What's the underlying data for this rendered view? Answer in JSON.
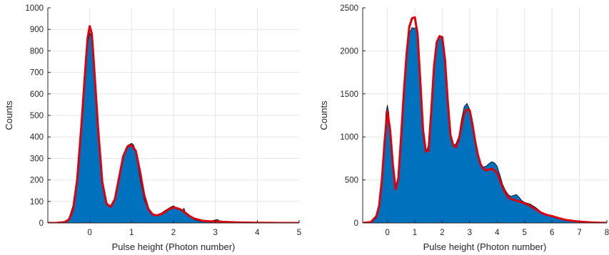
{
  "chart_data": [
    {
      "type": "area",
      "xlabel": "Pulse height (Photon number)",
      "ylabel": "Counts",
      "xlim": [
        -1,
        5
      ],
      "ylim": [
        0,
        1000
      ],
      "xticks": [
        0,
        1,
        2,
        3,
        4,
        5
      ],
      "yticks": [
        0,
        100,
        200,
        300,
        400,
        500,
        600,
        700,
        800,
        900,
        1000
      ],
      "grid": true,
      "histogram": {
        "fill_color": "#0072BD",
        "edge_color": "#000000",
        "x": [
          -1.0,
          -0.8,
          -0.6,
          -0.5,
          -0.4,
          -0.3,
          -0.2,
          -0.1,
          -0.05,
          0.0,
          0.05,
          0.1,
          0.2,
          0.3,
          0.4,
          0.5,
          0.6,
          0.7,
          0.8,
          0.9,
          1.0,
          1.05,
          1.1,
          1.2,
          1.3,
          1.4,
          1.5,
          1.6,
          1.7,
          1.8,
          1.9,
          2.0,
          2.05,
          2.1,
          2.2,
          2.25,
          2.3,
          2.4,
          2.5,
          2.6,
          2.7,
          2.8,
          2.9,
          3.0,
          3.05,
          3.1,
          3.2,
          3.4,
          3.6,
          4.0,
          4.5,
          5.0
        ],
        "y": [
          0,
          0,
          5,
          20,
          80,
          210,
          440,
          700,
          830,
          885,
          860,
          720,
          430,
          190,
          90,
          70,
          110,
          210,
          310,
          360,
          370,
          362,
          330,
          210,
          110,
          60,
          40,
          38,
          45,
          58,
          70,
          80,
          72,
          65,
          55,
          68,
          40,
          30,
          15,
          10,
          6,
          8,
          10,
          14,
          16,
          10,
          8,
          4,
          2,
          1,
          0,
          0
        ]
      },
      "series": [
        {
          "color": "#E0000B",
          "x": [
            -1.0,
            -0.8,
            -0.6,
            -0.5,
            -0.4,
            -0.3,
            -0.2,
            -0.1,
            -0.05,
            0.0,
            0.05,
            0.1,
            0.2,
            0.3,
            0.4,
            0.5,
            0.6,
            0.7,
            0.8,
            0.9,
            1.0,
            1.1,
            1.2,
            1.3,
            1.4,
            1.5,
            1.6,
            1.7,
            1.8,
            1.9,
            2.0,
            2.1,
            2.2,
            2.3,
            2.4,
            2.5,
            2.7,
            2.9,
            3.0,
            3.1,
            3.3,
            3.6,
            4.0,
            4.5,
            5.0
          ],
          "y": [
            0,
            0,
            4,
            15,
            60,
            200,
            450,
            730,
            860,
            915,
            880,
            740,
            440,
            190,
            90,
            75,
            110,
            210,
            310,
            355,
            362,
            335,
            240,
            130,
            65,
            40,
            35,
            40,
            52,
            65,
            72,
            68,
            60,
            45,
            30,
            20,
            10,
            7,
            8,
            6,
            4,
            2,
            1,
            0,
            0
          ]
        }
      ]
    },
    {
      "type": "area",
      "xlabel": "Pulse height (Photon number)",
      "ylabel": "Counts",
      "xlim": [
        -0.9,
        8
      ],
      "ylim": [
        0,
        2500
      ],
      "xticks": [
        0,
        1,
        2,
        3,
        4,
        5,
        6,
        7,
        8
      ],
      "yticks": [
        0,
        500,
        1000,
        1500,
        2000,
        2500
      ],
      "grid": true,
      "histogram": {
        "fill_color": "#0072BD",
        "edge_color": "#000000",
        "x": [
          -0.9,
          -0.6,
          -0.4,
          -0.3,
          -0.2,
          -0.1,
          -0.05,
          0.0,
          0.05,
          0.1,
          0.2,
          0.3,
          0.4,
          0.5,
          0.6,
          0.7,
          0.8,
          0.9,
          1.0,
          1.05,
          1.1,
          1.2,
          1.3,
          1.4,
          1.5,
          1.6,
          1.7,
          1.8,
          1.9,
          2.0,
          2.1,
          2.2,
          2.3,
          2.4,
          2.5,
          2.6,
          2.7,
          2.8,
          2.9,
          3.0,
          3.1,
          3.2,
          3.3,
          3.4,
          3.5,
          3.6,
          3.7,
          3.8,
          3.9,
          4.0,
          4.1,
          4.2,
          4.3,
          4.4,
          4.5,
          4.6,
          4.7,
          4.8,
          4.9,
          5.0,
          5.2,
          5.4,
          5.6,
          5.8,
          6.0,
          6.2,
          6.5,
          7.0,
          7.5,
          8.0
        ],
        "y": [
          0,
          5,
          60,
          180,
          500,
          1000,
          1280,
          1370,
          1280,
          1050,
          650,
          390,
          560,
          1050,
          1550,
          1950,
          2200,
          2270,
          2260,
          2280,
          2150,
          1600,
          1050,
          820,
          900,
          1350,
          1850,
          2100,
          2180,
          2140,
          1850,
          1380,
          1000,
          900,
          920,
          1000,
          1200,
          1350,
          1390,
          1320,
          1150,
          950,
          780,
          680,
          650,
          660,
          690,
          710,
          700,
          660,
          560,
          450,
          380,
          330,
          310,
          320,
          330,
          300,
          260,
          240,
          220,
          180,
          130,
          100,
          80,
          55,
          30,
          10,
          3,
          0
        ]
      },
      "series": [
        {
          "color": "#E0000B",
          "x": [
            -0.9,
            -0.6,
            -0.4,
            -0.3,
            -0.2,
            -0.1,
            0.0,
            0.1,
            0.2,
            0.3,
            0.4,
            0.5,
            0.6,
            0.7,
            0.8,
            0.9,
            1.0,
            1.1,
            1.2,
            1.3,
            1.4,
            1.5,
            1.6,
            1.7,
            1.8,
            1.9,
            2.0,
            2.1,
            2.2,
            2.3,
            2.4,
            2.5,
            2.6,
            2.7,
            2.8,
            2.9,
            3.0,
            3.1,
            3.2,
            3.3,
            3.4,
            3.5,
            3.6,
            3.7,
            3.8,
            3.9,
            4.0,
            4.1,
            4.2,
            4.3,
            4.4,
            4.5,
            4.6,
            4.7,
            4.8,
            5.0,
            5.2,
            5.4,
            5.6,
            5.8,
            6.0,
            6.2,
            6.5,
            7.0,
            7.5,
            8.0
          ],
          "y": [
            0,
            10,
            80,
            200,
            500,
            950,
            1300,
            1080,
            680,
            390,
            520,
            1000,
            1520,
            1960,
            2280,
            2380,
            2390,
            2200,
            1650,
            1080,
            830,
            840,
            1300,
            1820,
            2100,
            2170,
            2160,
            1900,
            1420,
            1020,
            900,
            880,
            960,
            1120,
            1270,
            1320,
            1310,
            1150,
            950,
            790,
            680,
            630,
            610,
            620,
            630,
            610,
            580,
            500,
            420,
            350,
            300,
            280,
            270,
            260,
            250,
            230,
            200,
            160,
            120,
            95,
            80,
            60,
            35,
            15,
            5,
            0
          ]
        }
      ]
    }
  ]
}
